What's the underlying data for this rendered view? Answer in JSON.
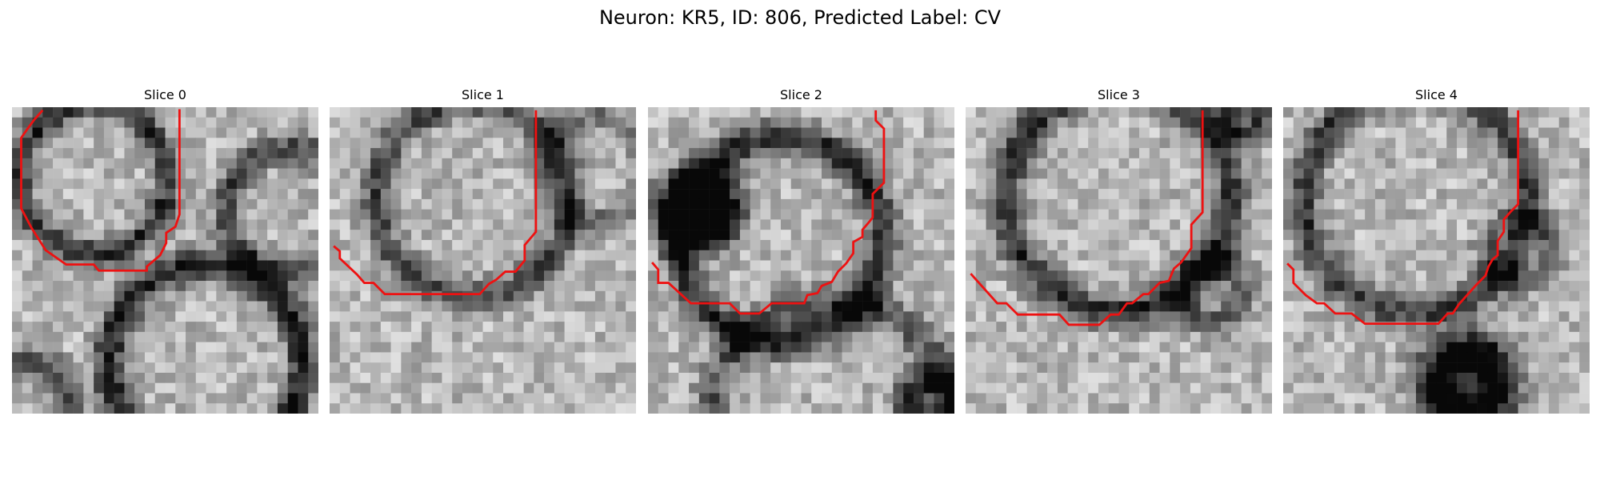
{
  "figure": {
    "title": "Neuron: KR5, ID: 806, Predicted Label: CV"
  },
  "panels": [
    {
      "title": "Slice 0"
    },
    {
      "title": "Slice 1"
    },
    {
      "title": "Slice 2"
    },
    {
      "title": "Slice 3"
    },
    {
      "title": "Slice 4"
    }
  ],
  "colors": {
    "contour": "#ee1111",
    "background": "#ffffff"
  }
}
